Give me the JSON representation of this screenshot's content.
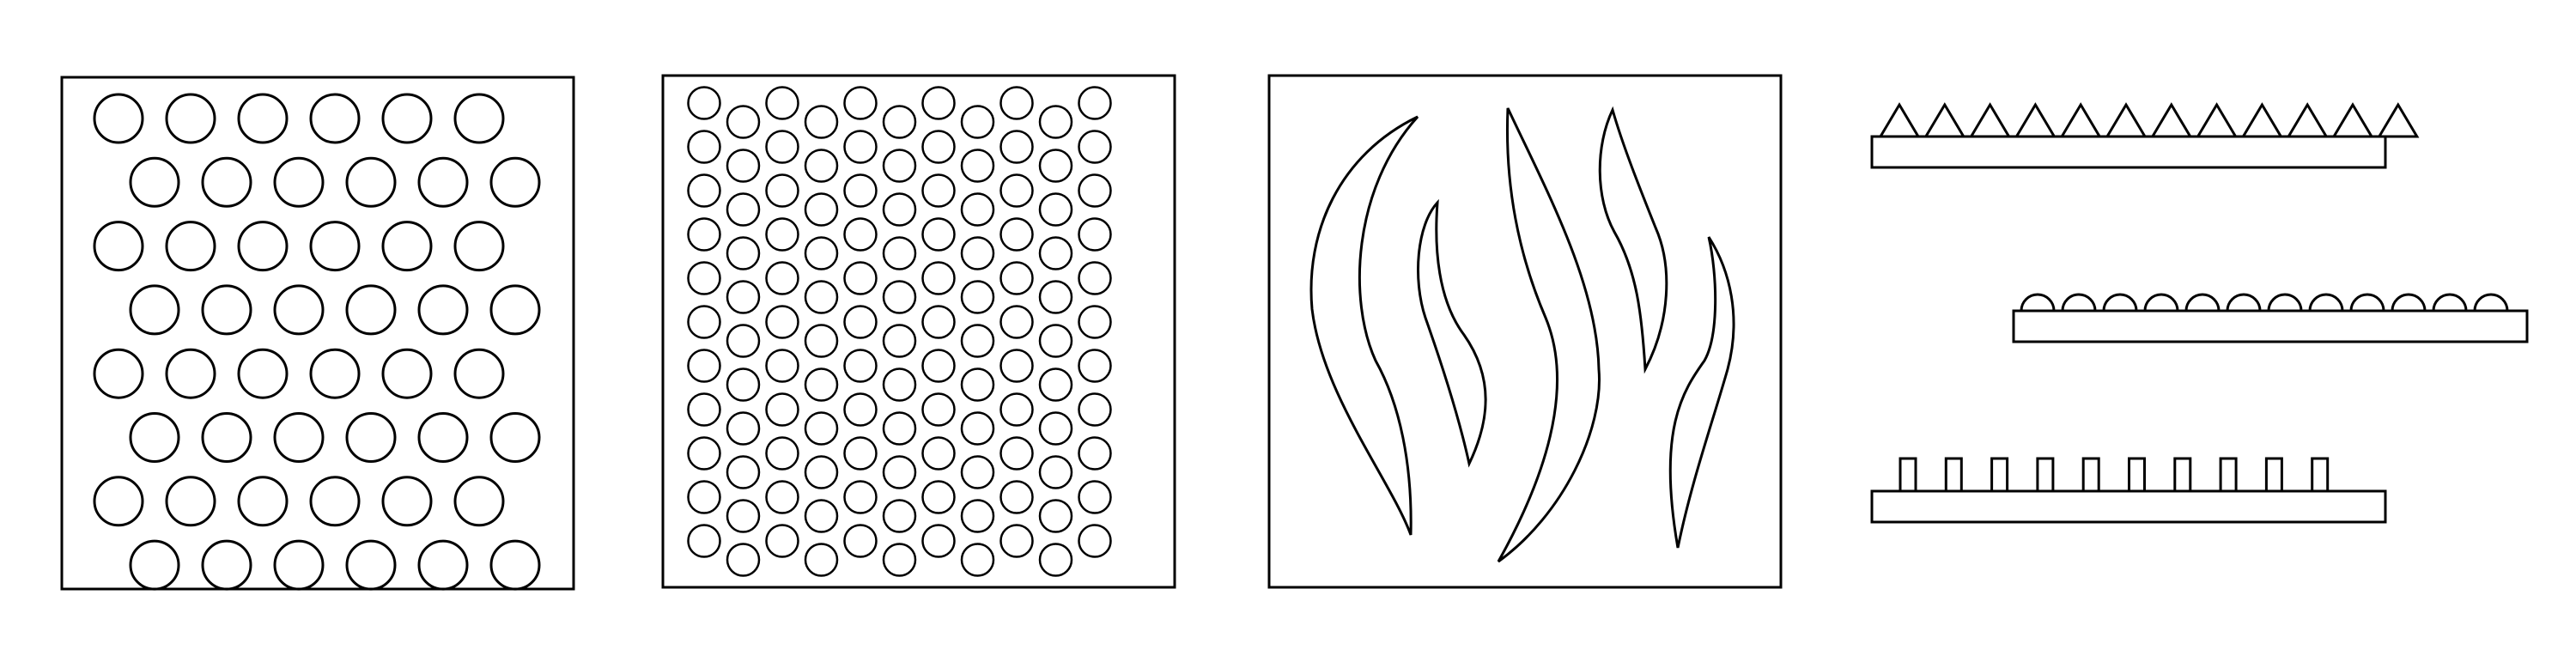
{
  "panels": [
    {
      "name": "sparse-circle-array-panel",
      "pattern": "circles",
      "density": "sparse"
    },
    {
      "name": "dense-circle-array-panel",
      "pattern": "circles",
      "density": "dense"
    },
    {
      "name": "curved-lamellae-panel",
      "pattern": "curved-lamellae"
    }
  ],
  "profiles": [
    {
      "name": "triangular-ridge-profile",
      "shape": "triangle",
      "count": 12
    },
    {
      "name": "hemispherical-bump-profile",
      "shape": "semicircle",
      "count": 12
    },
    {
      "name": "rectangular-pillar-profile",
      "shape": "rectangle",
      "count": 10
    }
  ],
  "colors": {
    "stroke": "#000000",
    "background": "#ffffff"
  }
}
